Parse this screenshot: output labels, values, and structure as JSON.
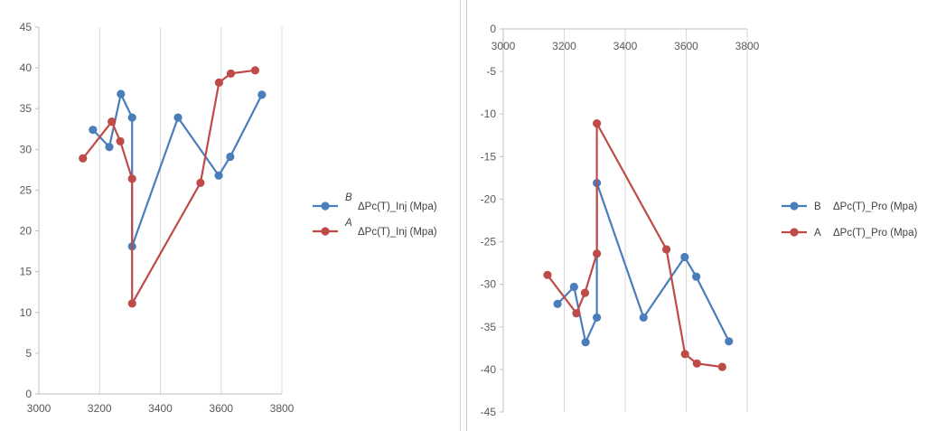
{
  "chart_data": [
    {
      "type": "line",
      "xlim": [
        3000,
        3800
      ],
      "ylim": [
        0,
        45
      ],
      "x_ticks": [
        "3000",
        "3200",
        "3400",
        "3600",
        "3800"
      ],
      "y_ticks": [
        "0",
        "5",
        "10",
        "15",
        "20",
        "25",
        "30",
        "35",
        "40",
        "45"
      ],
      "grid": "vertical",
      "legend_position": "right",
      "series": [
        {
          "name": "ΔPc(T)_Inj (Mpa)",
          "key": "B",
          "color": "#4a7ebb",
          "points": [
            [
              3178,
              32.4
            ],
            [
              3232,
              30.3
            ],
            [
              3270,
              36.8
            ],
            [
              3307,
              33.9
            ],
            [
              3307,
              18.1
            ],
            [
              3458,
              33.9
            ],
            [
              3592,
              26.8
            ],
            [
              3630,
              29.1
            ],
            [
              3734,
              36.7
            ]
          ]
        },
        {
          "name": "ΔPc(T)_Inj (Mpa)",
          "key": "A",
          "color": "#be4b48",
          "points": [
            [
              3145,
              28.9
            ],
            [
              3240,
              33.4
            ],
            [
              3268,
              31.0
            ],
            [
              3307,
              26.4
            ],
            [
              3307,
              11.1
            ],
            [
              3532,
              25.9
            ],
            [
              3593,
              38.2
            ],
            [
              3632,
              39.3
            ],
            [
              3712,
              39.7
            ]
          ]
        }
      ]
    },
    {
      "type": "line",
      "xlim": [
        3000,
        3800
      ],
      "ylim": [
        -45,
        0
      ],
      "x_ticks": [
        "3000",
        "3200",
        "3400",
        "3600",
        "3800"
      ],
      "y_ticks": [
        "0",
        "-5",
        "-10",
        "-15",
        "-20",
        "-25",
        "-30",
        "-35",
        "-40",
        "-45"
      ],
      "x_axis_position": "top",
      "grid": "vertical",
      "legend_position": "right",
      "series": [
        {
          "name": "ΔPc(T)_Pro (Mpa)",
          "key": "B",
          "color": "#4a7ebb",
          "points": [
            [
              3178,
              -32.3
            ],
            [
              3232,
              -30.3
            ],
            [
              3270,
              -36.8
            ],
            [
              3307,
              -33.9
            ],
            [
              3307,
              -18.1
            ],
            [
              3460,
              -33.9
            ],
            [
              3595,
              -26.8
            ],
            [
              3633,
              -29.1
            ],
            [
              3740,
              -36.7
            ]
          ]
        },
        {
          "name": "ΔPc(T)_Pro (Mpa)",
          "key": "A",
          "color": "#be4b48",
          "points": [
            [
              3145,
              -28.9
            ],
            [
              3240,
              -33.4
            ],
            [
              3268,
              -31.0
            ],
            [
              3307,
              -26.4
            ],
            [
              3307,
              -11.1
            ],
            [
              3535,
              -25.9
            ],
            [
              3596,
              -38.2
            ],
            [
              3635,
              -39.3
            ],
            [
              3718,
              -39.7
            ]
          ]
        }
      ]
    }
  ]
}
